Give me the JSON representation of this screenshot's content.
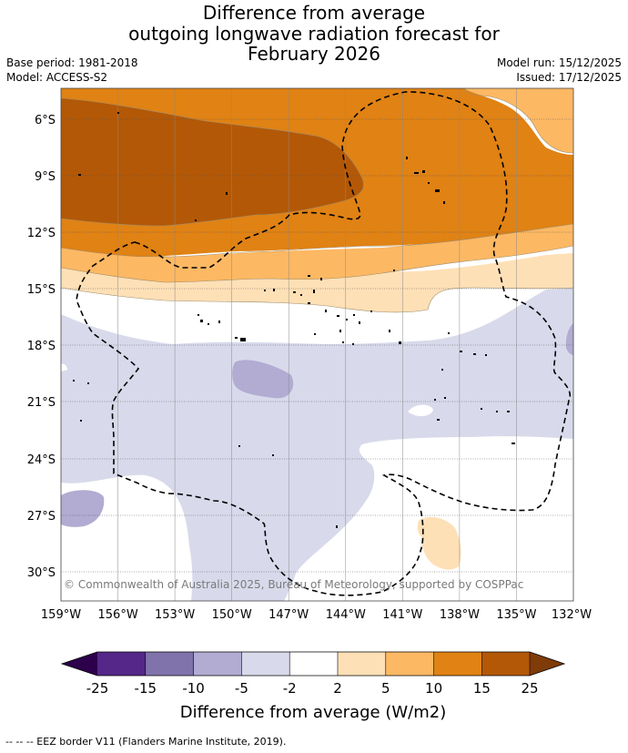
{
  "title": {
    "line1": "Difference from average",
    "line2": "outgoing longwave radiation forecast for",
    "line3": "February 2026"
  },
  "meta": {
    "base_period": "Base period: 1981-2018",
    "model": "Model: ACCESS-S2",
    "model_run": "Model run: 15/12/2025",
    "issued": "Issued: 17/12/2025"
  },
  "axes": {
    "x_labels": [
      "159°W",
      "156°W",
      "153°W",
      "150°W",
      "147°W",
      "144°W",
      "141°W",
      "138°W",
      "135°W",
      "132°W"
    ],
    "y_labels": [
      "6°S",
      "9°S",
      "12°S",
      "15°S",
      "18°S",
      "21°S",
      "24°S",
      "27°S",
      "30°S"
    ]
  },
  "credit": "© Commonwealth of Australia 2025, Bureau of Meteorology, supported by COSPPac",
  "colorbar": {
    "ticks": [
      "-25",
      "-15",
      "-10",
      "-5",
      "-2",
      "2",
      "5",
      "10",
      "15",
      "25"
    ],
    "colors": {
      "below": "#2d004b",
      "m25_m15": "#542788",
      "m15_m10": "#8073ac",
      "m10_m5": "#b2abd2",
      "m5_m2": "#d8daeb",
      "m2_p2": "#ffffff",
      "p2_p5": "#fee0b6",
      "p5_p10": "#fdb863",
      "p10_p15": "#e08214",
      "p15_p25": "#b35806",
      "above": "#7f3b08"
    },
    "label": "Difference from average (W/m2)"
  },
  "footer": "-- -- -- EEZ border V11 (Flanders Marine Institute, 2019)."
}
